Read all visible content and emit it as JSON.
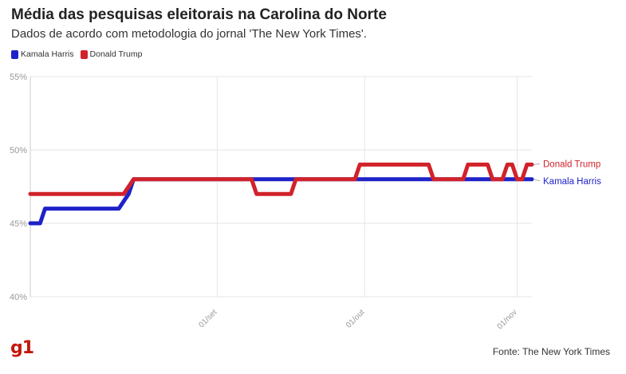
{
  "title": "Média das pesquisas eleitorais na Carolina do Norte",
  "subtitle": "Dados de acordo com metodologia do jornal 'The New York Times'.",
  "logo": "g1",
  "source": "Fonte: The New York Times",
  "colors": {
    "harris": "#1f22c8",
    "trump": "#d1222a",
    "grid": "#e6e6e6",
    "axis_text": "#999999"
  },
  "chart_data": {
    "type": "line",
    "title": "Média das pesquisas eleitorais na Carolina do Norte",
    "subtitle": "Dados de acordo com metodologia do jornal 'The New York Times'.",
    "xlabel": "",
    "ylabel": "",
    "ylim": [
      40,
      55
    ],
    "y_ticks": [
      55,
      50,
      45,
      40
    ],
    "y_tick_labels": [
      "55%",
      "50%",
      "45%",
      "40%"
    ],
    "x_range": [
      "2024-07-25",
      "2024-11-04"
    ],
    "x_ticks": [
      "2024-09-01",
      "2024-10-01",
      "2024-11-01"
    ],
    "x_tick_labels": [
      "01/set",
      "01/out",
      "01/nov"
    ],
    "grid": true,
    "legend": "top-left",
    "series": [
      {
        "name": "Kamala Harris",
        "label": "Kamala Harris",
        "color": "#1f22c8",
        "points": [
          [
            "2024-07-25",
            45
          ],
          [
            "2024-07-27",
            45
          ],
          [
            "2024-07-28",
            46
          ],
          [
            "2024-08-12",
            46
          ],
          [
            "2024-08-14",
            47
          ],
          [
            "2024-08-15",
            48
          ],
          [
            "2024-11-04",
            48
          ]
        ]
      },
      {
        "name": "Donald Trump",
        "label": "Donald Trump",
        "color": "#d1222a",
        "points": [
          [
            "2024-07-25",
            47
          ],
          [
            "2024-08-13",
            47
          ],
          [
            "2024-08-15",
            48
          ],
          [
            "2024-08-31",
            48
          ],
          [
            "2024-09-08",
            48
          ],
          [
            "2024-09-09",
            47
          ],
          [
            "2024-09-16",
            47
          ],
          [
            "2024-09-17",
            48
          ],
          [
            "2024-09-29",
            48
          ],
          [
            "2024-09-30",
            49
          ],
          [
            "2024-10-14",
            49
          ],
          [
            "2024-10-15",
            48
          ],
          [
            "2024-10-21",
            48
          ],
          [
            "2024-10-22",
            49
          ],
          [
            "2024-10-26",
            49
          ],
          [
            "2024-10-27",
            48
          ],
          [
            "2024-10-29",
            48
          ],
          [
            "2024-10-30",
            49
          ],
          [
            "2024-10-31",
            49
          ],
          [
            "2024-11-01",
            48
          ],
          [
            "2024-11-02",
            48
          ],
          [
            "2024-11-03",
            49
          ],
          [
            "2024-11-04",
            49
          ]
        ]
      }
    ]
  }
}
